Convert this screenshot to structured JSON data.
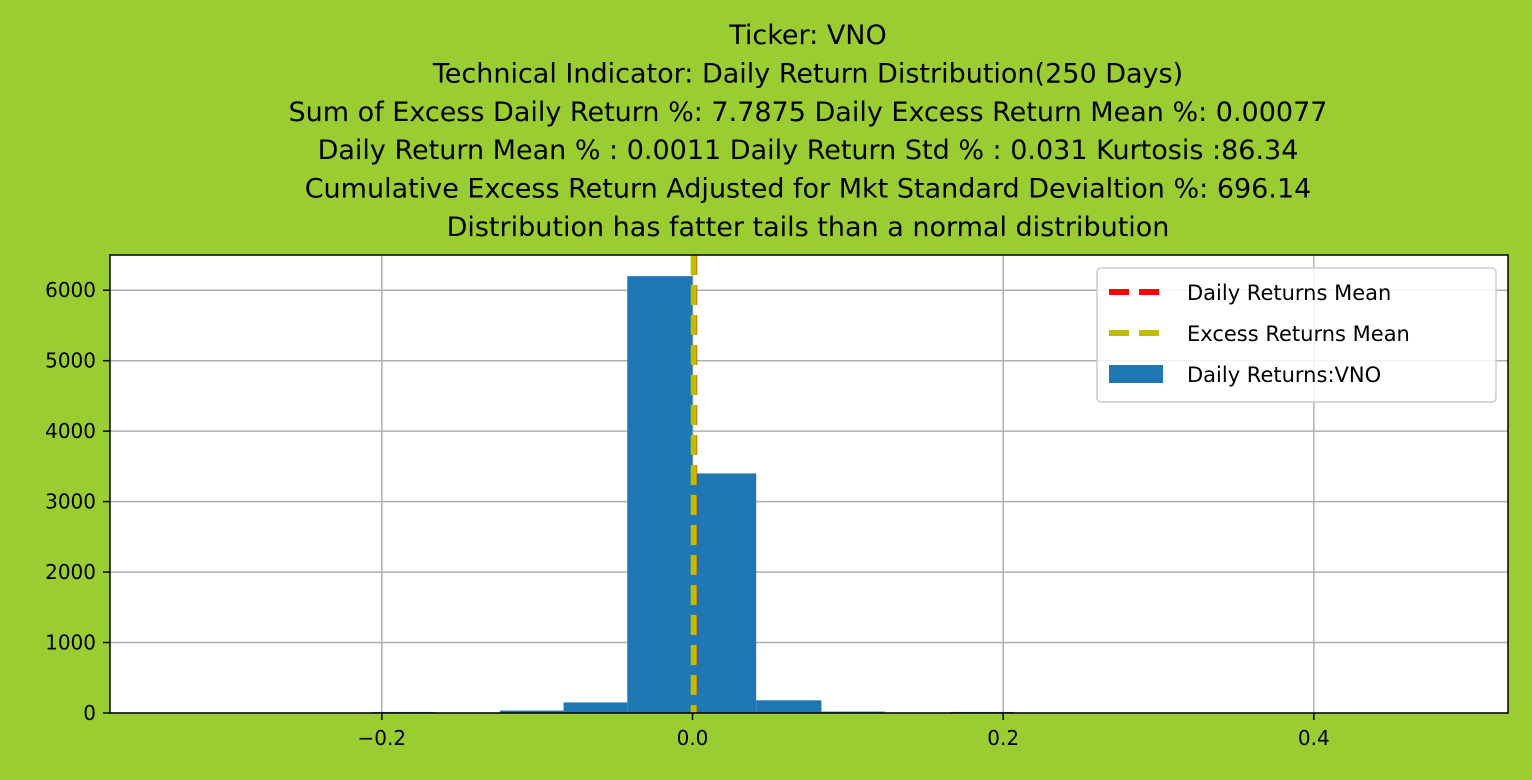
{
  "chart_data": {
    "type": "bar",
    "title_lines": [
      "Ticker: VNO",
      "Technical Indicator: Daily Return Distribution(250 Days)",
      "Sum of Excess Daily Return %: 7.7875   Daily Excess Return Mean %: 0.00077",
      "Daily Return Mean % : 0.0011    Daily Return Std % : 0.031  Kurtosis :86.34",
      "Cumulative Excess Return Adjusted for Mkt Standard Devialtion %: 696.14",
      "Distribution has fatter tails than a normal distribution"
    ],
    "xlabel": "",
    "ylabel": "",
    "xlim": [
      -0.375,
      0.525
    ],
    "ylim": [
      0,
      6500
    ],
    "x_ticks": [
      -0.2,
      0.0,
      0.2,
      0.4
    ],
    "x_tick_labels": [
      "−0.2",
      "0.0",
      "0.2",
      "0.4"
    ],
    "y_ticks": [
      0,
      1000,
      2000,
      3000,
      4000,
      5000,
      6000
    ],
    "y_tick_labels": [
      "0",
      "1000",
      "2000",
      "3000",
      "4000",
      "5000",
      "6000"
    ],
    "grid": true,
    "legend_position": "top-right",
    "bins": [
      {
        "x0": -0.207,
        "x1": -0.166,
        "count": 15
      },
      {
        "x0": -0.166,
        "x1": -0.124,
        "count": 5
      },
      {
        "x0": -0.124,
        "x1": -0.083,
        "count": 35
      },
      {
        "x0": -0.083,
        "x1": -0.042,
        "count": 150
      },
      {
        "x0": -0.042,
        "x1": 0.0,
        "count": 6200
      },
      {
        "x0": 0.0,
        "x1": 0.041,
        "count": 3400
      },
      {
        "x0": 0.041,
        "x1": 0.083,
        "count": 180
      },
      {
        "x0": 0.083,
        "x1": 0.124,
        "count": 20
      },
      {
        "x0": 0.124,
        "x1": 0.166,
        "count": 5
      },
      {
        "x0": 0.166,
        "x1": 0.207,
        "count": 15
      }
    ],
    "daily_returns_mean": 0.0011,
    "excess_returns_mean": 0.00077,
    "legend": [
      {
        "label": "Daily Returns Mean",
        "style": "dashed",
        "color": "#ff0000"
      },
      {
        "label": "Excess Returns Mean",
        "style": "dashed",
        "color": "#bfbf00"
      },
      {
        "label": "Daily Returns:VNO",
        "style": "patch",
        "color": "#1f77b4"
      }
    ],
    "colors": {
      "background": "#9acd32",
      "plot_background": "#ffffff",
      "bar": "#1f77b4",
      "grid": "#b0b0b0"
    }
  }
}
